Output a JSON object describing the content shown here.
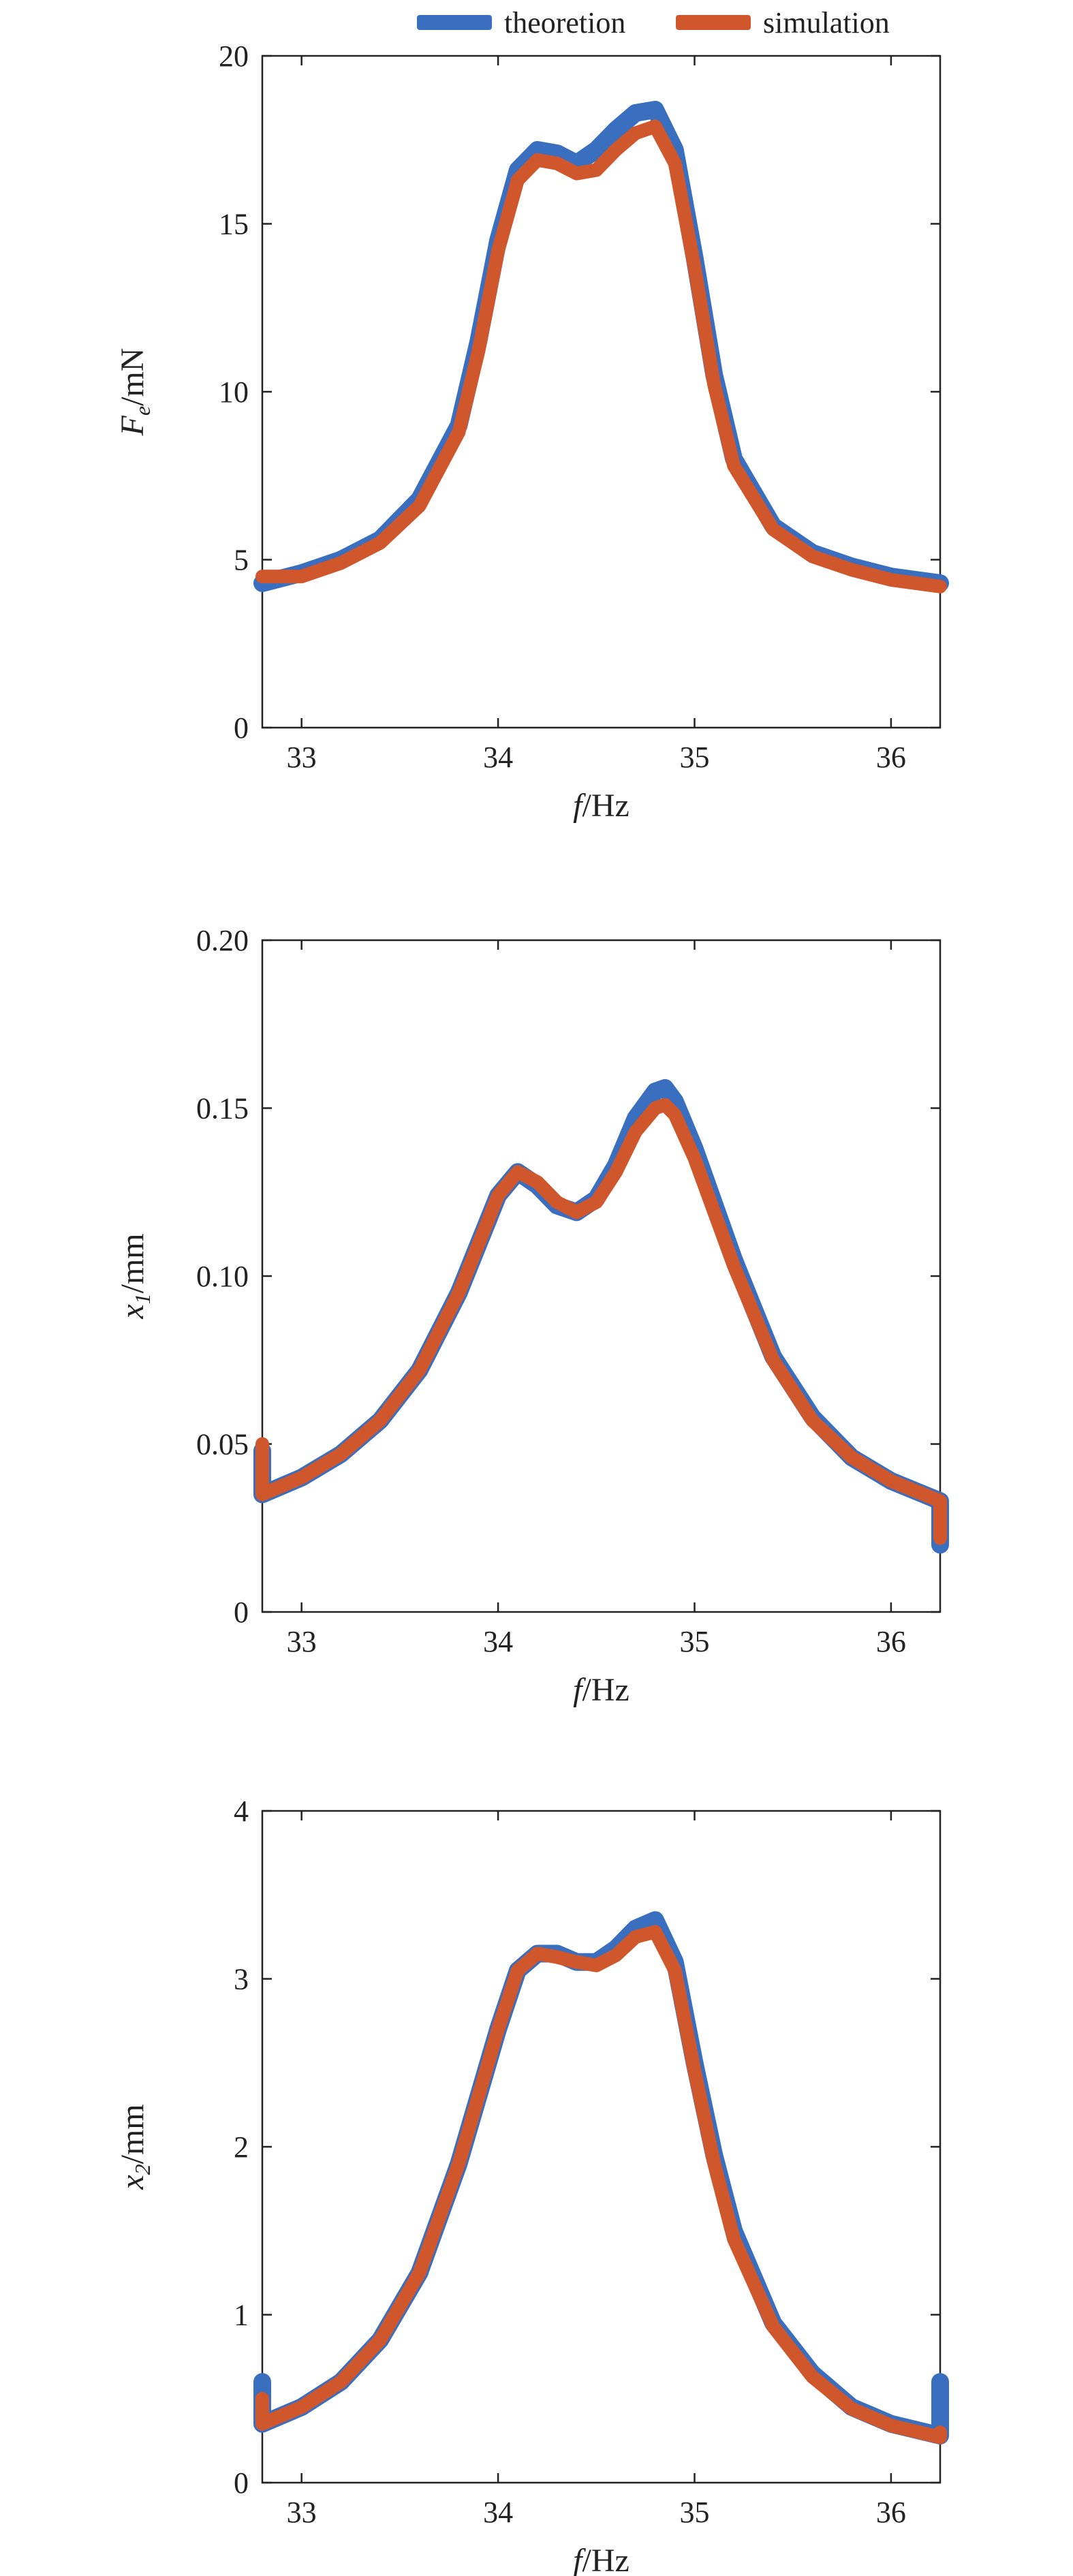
{
  "colors": {
    "theoretion": "#3a6fc0",
    "simulation": "#d0562b",
    "axis": "#222222"
  },
  "legend": {
    "placement": "top-right",
    "items": [
      {
        "label": "theoretion",
        "color": "#3a6fc0"
      },
      {
        "label": "simulation",
        "color": "#d0562b"
      }
    ]
  },
  "chart_data": [
    {
      "type": "line",
      "xlabel": "f/Hz",
      "ylabel": {
        "main": "F",
        "sub": "e",
        "unit": "/mN"
      },
      "xlim": [
        32.8,
        36.25
      ],
      "ylim": [
        0,
        20
      ],
      "xticks": [
        33,
        34,
        35,
        36
      ],
      "yticks": [
        0,
        5,
        10,
        15,
        20
      ],
      "series": [
        {
          "name": "theoretion",
          "x": [
            32.8,
            33.0,
            33.2,
            33.4,
            33.6,
            33.8,
            33.9,
            34.0,
            34.1,
            34.2,
            34.3,
            34.4,
            34.5,
            34.6,
            34.7,
            34.8,
            34.9,
            35.0,
            35.1,
            35.2,
            35.4,
            35.6,
            35.8,
            36.0,
            36.25
          ],
          "y": [
            4.3,
            4.6,
            5.0,
            5.6,
            6.8,
            9.0,
            11.5,
            14.5,
            16.6,
            17.2,
            17.1,
            16.8,
            17.2,
            17.8,
            18.3,
            18.4,
            17.2,
            14.0,
            10.5,
            8.0,
            6.0,
            5.2,
            4.8,
            4.5,
            4.3
          ]
        },
        {
          "name": "simulation",
          "x": [
            32.8,
            33.0,
            33.2,
            33.4,
            33.6,
            33.8,
            33.9,
            34.0,
            34.1,
            34.2,
            34.3,
            34.4,
            34.5,
            34.6,
            34.7,
            34.8,
            34.9,
            35.0,
            35.1,
            35.2,
            35.4,
            35.6,
            35.8,
            36.0,
            36.25
          ],
          "y": [
            4.5,
            4.5,
            4.9,
            5.5,
            6.6,
            8.8,
            11.2,
            14.2,
            16.3,
            16.9,
            16.8,
            16.5,
            16.6,
            17.2,
            17.7,
            17.9,
            16.8,
            13.7,
            10.2,
            7.8,
            5.9,
            5.1,
            4.7,
            4.4,
            4.2
          ]
        }
      ]
    },
    {
      "type": "line",
      "xlabel": "f/Hz",
      "ylabel": {
        "main": "x",
        "sub": "1",
        "unit": "/mm"
      },
      "xlim": [
        32.8,
        36.25
      ],
      "ylim": [
        0,
        0.2
      ],
      "xticks": [
        33,
        34,
        35,
        36
      ],
      "yticks": [
        0,
        0.05,
        0.1,
        0.15,
        0.2
      ],
      "ytick_labels": [
        "0",
        "0.05",
        "0.10",
        "0.15",
        "0.20"
      ],
      "series": [
        {
          "name": "theoretion",
          "x": [
            32.8,
            32.8,
            33.0,
            33.2,
            33.4,
            33.6,
            33.8,
            34.0,
            34.1,
            34.2,
            34.3,
            34.4,
            34.5,
            34.6,
            34.7,
            34.8,
            34.85,
            34.9,
            35.0,
            35.2,
            35.4,
            35.6,
            35.8,
            36.0,
            36.25,
            36.25
          ],
          "y": [
            0.048,
            0.035,
            0.04,
            0.047,
            0.057,
            0.072,
            0.095,
            0.124,
            0.131,
            0.127,
            0.121,
            0.119,
            0.123,
            0.133,
            0.147,
            0.155,
            0.156,
            0.152,
            0.138,
            0.105,
            0.076,
            0.058,
            0.046,
            0.039,
            0.033,
            0.02
          ]
        },
        {
          "name": "simulation",
          "x": [
            32.8,
            32.8,
            33.0,
            33.2,
            33.4,
            33.6,
            33.8,
            34.0,
            34.1,
            34.2,
            34.3,
            34.4,
            34.5,
            34.6,
            34.7,
            34.8,
            34.85,
            34.9,
            35.0,
            35.2,
            35.4,
            35.6,
            35.8,
            36.0,
            36.25,
            36.25
          ],
          "y": [
            0.05,
            0.035,
            0.04,
            0.047,
            0.057,
            0.072,
            0.095,
            0.124,
            0.131,
            0.128,
            0.122,
            0.119,
            0.122,
            0.131,
            0.143,
            0.15,
            0.151,
            0.148,
            0.135,
            0.103,
            0.075,
            0.057,
            0.046,
            0.039,
            0.033,
            0.022
          ]
        }
      ]
    },
    {
      "type": "line",
      "xlabel": "f/Hz",
      "ylabel": {
        "main": "x",
        "sub": "2",
        "unit": "/mm"
      },
      "xlim": [
        32.8,
        36.25
      ],
      "ylim": [
        0,
        4
      ],
      "xticks": [
        33,
        34,
        35,
        36
      ],
      "yticks": [
        0,
        1,
        2,
        3,
        4
      ],
      "series": [
        {
          "name": "theoretion",
          "x": [
            32.8,
            32.8,
            33.0,
            33.2,
            33.4,
            33.6,
            33.8,
            34.0,
            34.1,
            34.2,
            34.3,
            34.4,
            34.5,
            34.6,
            34.7,
            34.8,
            34.9,
            35.0,
            35.1,
            35.2,
            35.4,
            35.6,
            35.8,
            36.0,
            36.25,
            36.25
          ],
          "y": [
            0.6,
            0.35,
            0.45,
            0.6,
            0.85,
            1.25,
            1.9,
            2.7,
            3.05,
            3.15,
            3.15,
            3.1,
            3.1,
            3.18,
            3.3,
            3.35,
            3.1,
            2.5,
            1.95,
            1.5,
            0.95,
            0.65,
            0.45,
            0.35,
            0.28,
            0.6
          ]
        },
        {
          "name": "simulation",
          "x": [
            32.8,
            32.8,
            33.0,
            33.2,
            33.4,
            33.6,
            33.8,
            34.0,
            34.1,
            34.2,
            34.3,
            34.4,
            34.5,
            34.6,
            34.7,
            34.8,
            34.9,
            35.0,
            35.1,
            35.2,
            35.4,
            35.6,
            35.8,
            36.0,
            36.25,
            36.25
          ],
          "y": [
            0.5,
            0.35,
            0.45,
            0.6,
            0.85,
            1.25,
            1.9,
            2.7,
            3.05,
            3.15,
            3.13,
            3.1,
            3.08,
            3.14,
            3.25,
            3.28,
            3.05,
            2.45,
            1.9,
            1.45,
            0.93,
            0.63,
            0.44,
            0.34,
            0.27,
            0.3
          ]
        }
      ]
    }
  ]
}
